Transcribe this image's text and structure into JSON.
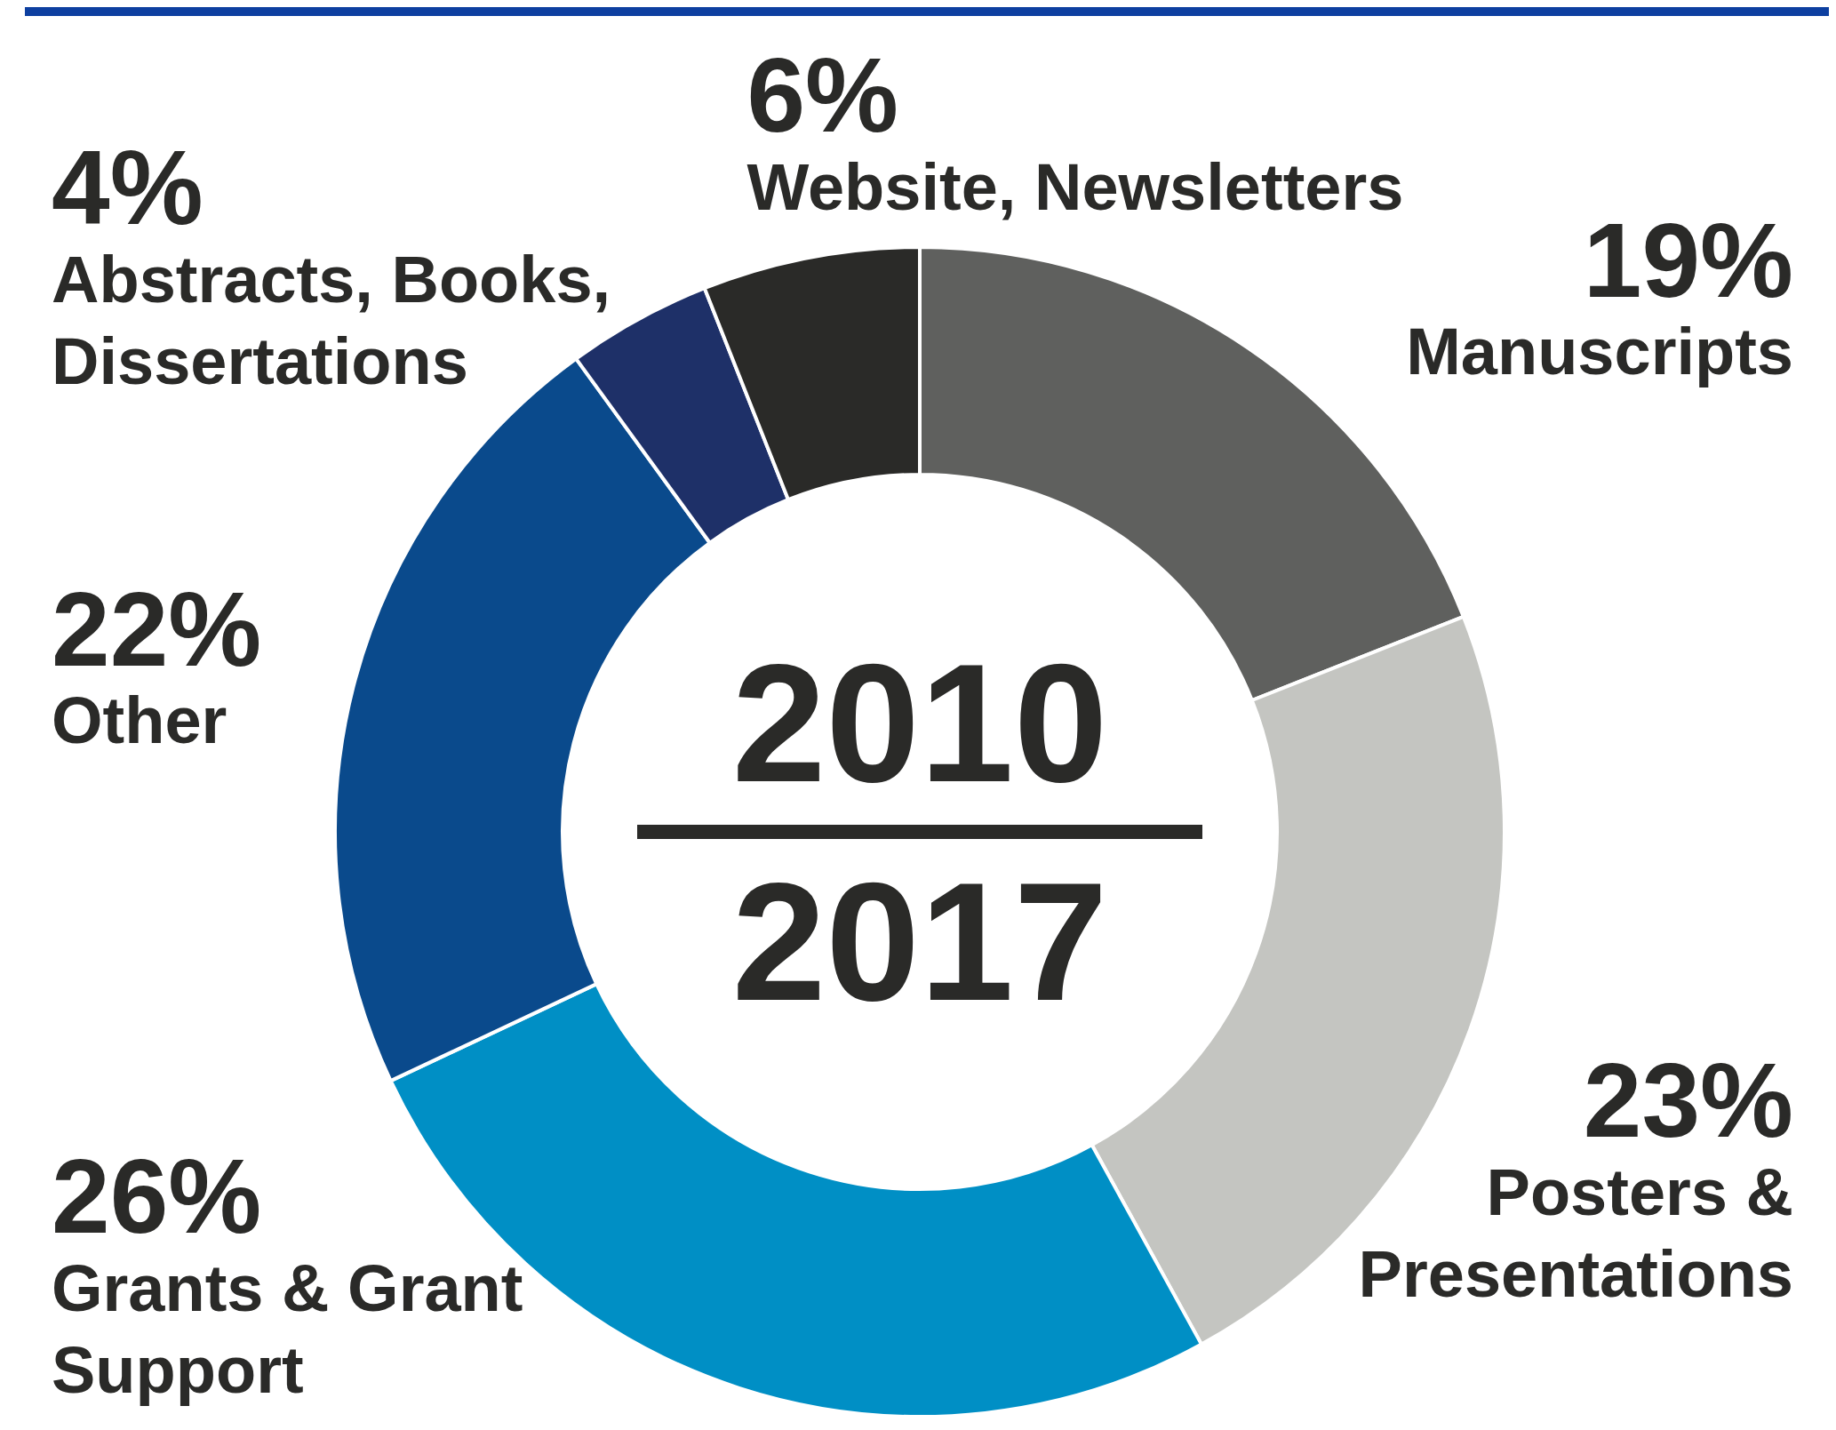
{
  "chart_data": {
    "type": "donut",
    "categories": [
      "Manuscripts",
      "Posters & Presentations",
      "Grants & Grant Support",
      "Other",
      "Abstracts, Books, Dissertations",
      "Website, Newsletters"
    ],
    "values": [
      19,
      23,
      26,
      22,
      4,
      6
    ],
    "value_labels": [
      "19%",
      "23%",
      "26%",
      "22%",
      "4%",
      "6%"
    ],
    "colors": [
      "#5f605e",
      "#c4c5c1",
      "#008fc5",
      "#0a4a8c",
      "#1e3068",
      "#2a2a28"
    ],
    "legend": false,
    "annotations": [
      "2010",
      "2017"
    ]
  }
}
